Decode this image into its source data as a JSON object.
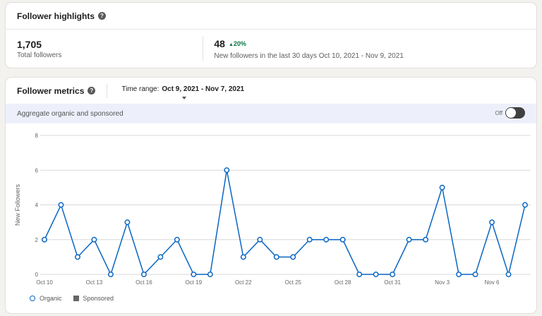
{
  "highlights": {
    "title": "Follower highlights",
    "help_glyph": "?",
    "total_followers": {
      "value": "1,705",
      "label": "Total followers"
    },
    "new_followers": {
      "value": "48",
      "delta": "20%",
      "label": "New followers in the last 30 days Oct 10, 2021 - Nov 9, 2021"
    }
  },
  "metrics": {
    "title": "Follower metrics",
    "help_glyph": "?",
    "time_range_label": "Time range:",
    "time_range_value": "Oct 9, 2021 - Nov 7, 2021",
    "aggregate_label": "Aggregate organic and sponsored",
    "toggle_state": "Off"
  },
  "legend": {
    "organic": "Organic",
    "sponsored": "Sponsored"
  },
  "colors": {
    "line": "#0a66c2",
    "grid": "#d9d9d9",
    "delta": "#057642"
  },
  "chart_data": {
    "type": "line",
    "ylabel": "New Followers",
    "ylim": [
      0,
      8
    ],
    "yticks": [
      0,
      2,
      4,
      6,
      8
    ],
    "x": [
      "Oct 10",
      "Oct 11",
      "Oct 12",
      "Oct 13",
      "Oct 14",
      "Oct 15",
      "Oct 16",
      "Oct 17",
      "Oct 18",
      "Oct 19",
      "Oct 20",
      "Oct 21",
      "Oct 22",
      "Oct 23",
      "Oct 24",
      "Oct 25",
      "Oct 26",
      "Oct 27",
      "Oct 28",
      "Oct 29",
      "Oct 30",
      "Oct 31",
      "Nov 1",
      "Nov 2",
      "Nov 3",
      "Nov 4",
      "Nov 5",
      "Nov 6",
      "Nov 7",
      "Nov 8"
    ],
    "xtick_labels": [
      "Oct 10",
      "Oct 13",
      "Oct 16",
      "Oct 19",
      "Oct 22",
      "Oct 25",
      "Oct 28",
      "Oct 31",
      "Nov 3",
      "Nov 6"
    ],
    "series": [
      {
        "name": "Organic",
        "values": [
          2,
          4,
          1,
          2,
          0,
          3,
          0,
          1,
          2,
          0,
          0,
          6,
          1,
          2,
          1,
          1,
          2,
          2,
          2,
          0,
          0,
          0,
          2,
          2,
          5,
          0,
          0,
          3,
          0,
          4
        ]
      }
    ],
    "grid": true,
    "legend_position": "bottom-left"
  }
}
